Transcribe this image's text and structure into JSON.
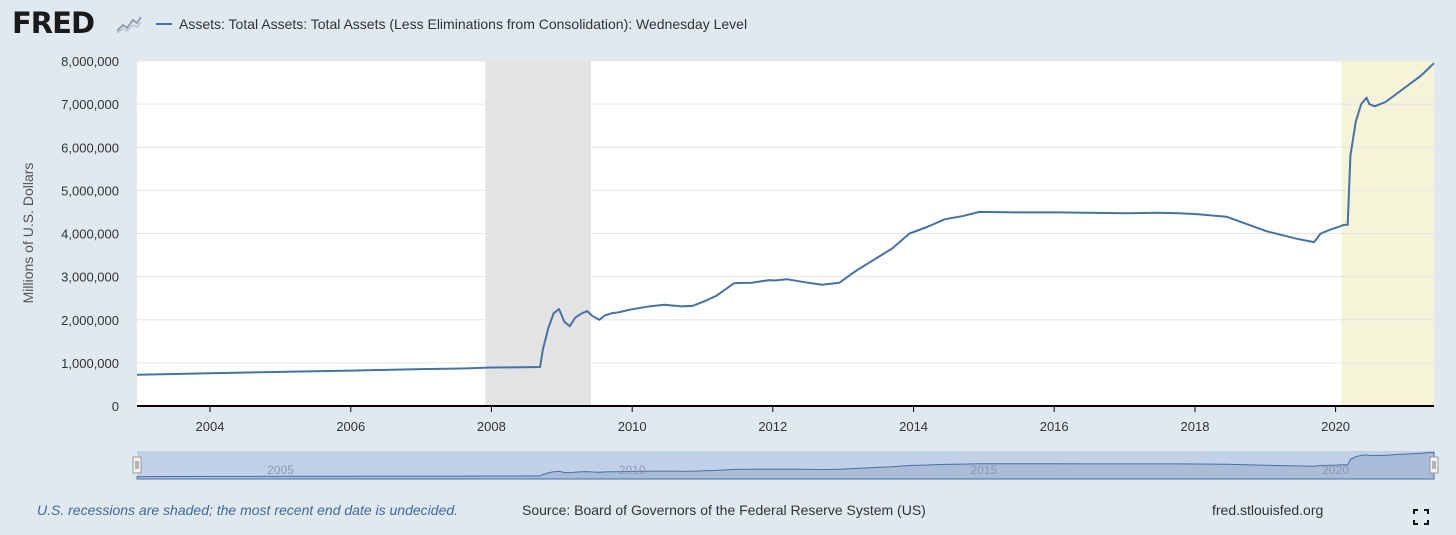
{
  "brand": {
    "logo_text": "FRED"
  },
  "footer": {
    "recession_note": "U.S. recessions are shaded; the most recent end date is undecided.",
    "source": "Source: Board of Governors of the Federal Reserve System (US)",
    "site": "fred.stlouisfed.org"
  },
  "colors": {
    "series": "#4572a7",
    "recession_shade": "#e3e3e3",
    "highlight_shade": "#f5f3d8",
    "background": "#e1e9f0",
    "plot_background": "#ffffff",
    "navigator_fill": "#c3d1e8"
  },
  "chart_data": {
    "type": "line",
    "title": "",
    "xlabel": "",
    "ylabel": "Millions of U.S. Dollars",
    "xlim": [
      "2002-12-18",
      "2021-05-26"
    ],
    "ylim": [
      0,
      8000000
    ],
    "grid": true,
    "legend_position": "top-left",
    "x_ticks": [
      "2004",
      "2006",
      "2008",
      "2010",
      "2012",
      "2014",
      "2016",
      "2018",
      "2020"
    ],
    "y_ticks": [
      "0",
      "1,000,000",
      "2,000,000",
      "3,000,000",
      "4,000,000",
      "5,000,000",
      "6,000,000",
      "7,000,000",
      "8,000,000"
    ],
    "shaded_regions": [
      {
        "start": "2007-12-01",
        "end": "2009-06-01",
        "kind": "recession"
      },
      {
        "start": "2020-02-01",
        "end": "2021-05-26",
        "kind": "recession"
      }
    ],
    "navigator": {
      "labels": [
        "2005",
        "2010",
        "2015",
        "2020"
      ]
    },
    "series": [
      {
        "name": "Assets: Total Assets: Total Assets (Less Eliminations from Consolidation): Wednesday Level",
        "x": [
          "2002-12-18",
          "2003-06-01",
          "2004-01-01",
          "2005-01-01",
          "2006-01-01",
          "2007-01-01",
          "2007-08-01",
          "2008-01-01",
          "2008-06-01",
          "2008-09-10",
          "2008-09-24",
          "2008-10-22",
          "2008-11-19",
          "2008-12-17",
          "2009-01-14",
          "2009-02-11",
          "2009-03-11",
          "2009-04-15",
          "2009-05-13",
          "2009-06-10",
          "2009-07-15",
          "2009-08-12",
          "2009-09-16",
          "2009-10-21",
          "2009-11-18",
          "2009-12-16",
          "2010-03-17",
          "2010-06-16",
          "2010-09-15",
          "2010-11-10",
          "2011-01-12",
          "2011-03-16",
          "2011-06-15",
          "2011-09-14",
          "2011-12-14",
          "2012-01-11",
          "2012-03-14",
          "2012-06-13",
          "2012-09-12",
          "2012-12-12",
          "2013-03-13",
          "2013-06-12",
          "2013-09-11",
          "2013-12-11",
          "2014-03-12",
          "2014-06-11",
          "2014-09-10",
          "2014-12-10",
          "2015-06-10",
          "2016-01-13",
          "2016-06-15",
          "2017-01-11",
          "2017-06-14",
          "2017-10-11",
          "2018-01-10",
          "2018-06-13",
          "2019-01-09",
          "2019-06-12",
          "2019-09-11",
          "2019-10-16",
          "2019-12-11",
          "2020-01-15",
          "2020-02-12",
          "2020-03-04",
          "2020-03-18",
          "2020-04-01",
          "2020-04-15",
          "2020-05-13",
          "2020-06-10",
          "2020-06-24",
          "2020-07-22",
          "2020-09-16",
          "2020-12-16",
          "2021-03-17",
          "2021-05-26"
        ],
        "values": [
          724000,
          740000,
          760000,
          790000,
          820000,
          855000,
          870000,
          892000,
          900000,
          905000,
          1300000,
          1800000,
          2150000,
          2250000,
          1950000,
          1850000,
          2050000,
          2150000,
          2200000,
          2080000,
          2000000,
          2100000,
          2150000,
          2170000,
          2200000,
          2230000,
          2300000,
          2350000,
          2310000,
          2320000,
          2430000,
          2560000,
          2850000,
          2860000,
          2920000,
          2910000,
          2940000,
          2870000,
          2810000,
          2860000,
          3150000,
          3400000,
          3650000,
          4000000,
          4150000,
          4330000,
          4400000,
          4500000,
          4490000,
          4490000,
          4480000,
          4470000,
          4480000,
          4470000,
          4450000,
          4390000,
          4050000,
          3880000,
          3800000,
          4000000,
          4100000,
          4150000,
          4200000,
          4200000,
          5800000,
          6200000,
          6600000,
          7000000,
          7150000,
          7000000,
          6950000,
          7050000,
          7350000,
          7650000,
          7950000
        ]
      }
    ]
  }
}
